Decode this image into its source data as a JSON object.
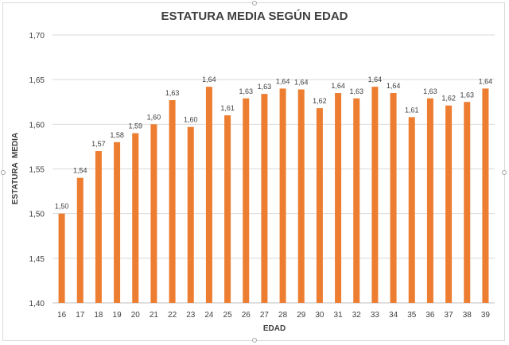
{
  "chart_data": {
    "type": "bar",
    "title": "ESTATURA MEDIA SEGÚN EDAD",
    "xlabel": "EDAD",
    "ylabel": "ESTATURA  MEDIA",
    "categories": [
      "16",
      "17",
      "18",
      "19",
      "20",
      "21",
      "22",
      "23",
      "24",
      "25",
      "26",
      "27",
      "28",
      "29",
      "30",
      "31",
      "32",
      "33",
      "34",
      "35",
      "36",
      "37",
      "38",
      "39"
    ],
    "values": [
      1.5,
      1.54,
      1.57,
      1.58,
      1.59,
      1.6,
      1.627,
      1.597,
      1.642,
      1.61,
      1.629,
      1.634,
      1.64,
      1.639,
      1.618,
      1.635,
      1.629,
      1.642,
      1.635,
      1.608,
      1.629,
      1.621,
      1.625,
      1.64
    ],
    "data_labels": [
      "1,50",
      "1,54",
      "1,57",
      "1,58",
      "1,59",
      "1,60",
      "1,63",
      "1,60",
      "1,64",
      "1,61",
      "1,63",
      "1,63",
      "1,64",
      "1,64",
      "1,62",
      "1,64",
      "1,63",
      "1,64",
      "1,64",
      "1,61",
      "1,63",
      "1,62",
      "1,63",
      "1,64"
    ],
    "yticks": [
      "1,40",
      "1,45",
      "1,50",
      "1,55",
      "1,60",
      "1,65",
      "1,70"
    ],
    "ylim": [
      1.4,
      1.7
    ],
    "grid": true,
    "bar_color": "#ED7D31",
    "grid_color": "#d9d9d9",
    "text_color": "#404040"
  }
}
